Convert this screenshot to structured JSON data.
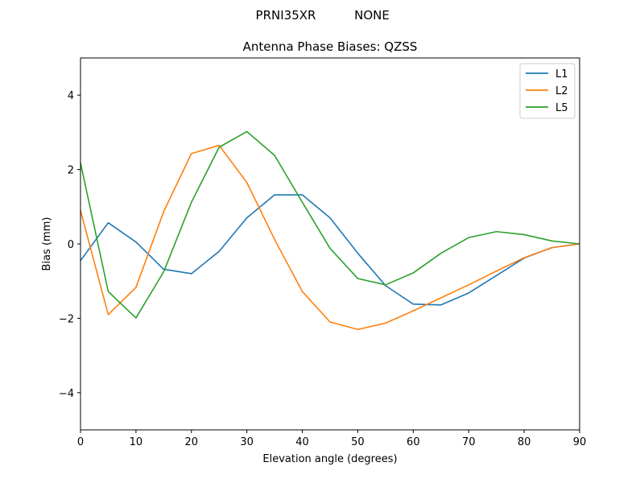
{
  "header": {
    "antenna": "PRNI35XR",
    "radome": "NONE"
  },
  "chart_data": {
    "type": "line",
    "title": "Antenna Phase Biases: QZSS",
    "xlabel": "Elevation angle (degrees)",
    "ylabel": "Bias (mm)",
    "xlim": [
      0,
      90
    ],
    "ylim": [
      -5,
      5
    ],
    "xticks": [
      0,
      10,
      20,
      30,
      40,
      50,
      60,
      70,
      80,
      90
    ],
    "yticks": [
      -4,
      -2,
      0,
      2,
      4
    ],
    "ytick_labels": [
      "−4",
      "−2",
      "0",
      "2",
      "4"
    ],
    "grid": false,
    "legend_position": "top-right",
    "x": [
      0,
      5,
      10,
      15,
      20,
      25,
      30,
      35,
      40,
      45,
      50,
      55,
      60,
      65,
      70,
      75,
      80,
      85,
      90
    ],
    "series": [
      {
        "name": "L1",
        "color": "#1f77b4",
        "values": [
          -0.45,
          0.57,
          0.05,
          -0.68,
          -0.8,
          -0.2,
          0.7,
          1.32,
          1.32,
          0.7,
          -0.25,
          -1.12,
          -1.62,
          -1.64,
          -1.32,
          -0.85,
          -0.38,
          -0.1,
          0.0
        ]
      },
      {
        "name": "L2",
        "color": "#ff7f0e",
        "values": [
          0.9,
          -1.9,
          -1.17,
          0.87,
          2.43,
          2.65,
          1.65,
          0.12,
          -1.28,
          -2.1,
          -2.3,
          -2.13,
          -1.8,
          -1.45,
          -1.1,
          -0.73,
          -0.37,
          -0.1,
          0.0
        ]
      },
      {
        "name": "L5",
        "color": "#2ca02c",
        "values": [
          2.18,
          -1.28,
          -1.99,
          -0.75,
          1.12,
          2.6,
          3.02,
          2.38,
          1.12,
          -0.12,
          -0.93,
          -1.1,
          -0.78,
          -0.25,
          0.17,
          0.33,
          0.25,
          0.08,
          0.0
        ]
      }
    ]
  }
}
